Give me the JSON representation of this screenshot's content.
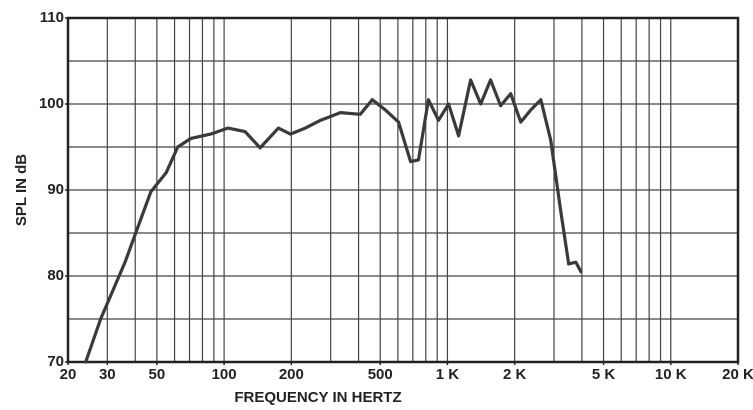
{
  "chart_data": {
    "type": "line",
    "xlabel": "FREQUENCY IN HERTZ",
    "ylabel": "SPL IN dB",
    "x": [
      24,
      28,
      36,
      47,
      55,
      62,
      71,
      87,
      104,
      124,
      145,
      175,
      198,
      231,
      270,
      332,
      407,
      461,
      528,
      604,
      684,
      742,
      822,
      912,
      1012,
      1122,
      1270,
      1409,
      1560,
      1730,
      1920,
      2130,
      2360,
      2620,
      2900,
      3210,
      3490,
      3760,
      3960
    ],
    "series": [
      {
        "color": "#3a3a3a",
        "values": [
          70,
          75,
          81.6,
          89.8,
          92,
          95,
          96,
          96.5,
          97.2,
          96.8,
          94.9,
          97.2,
          96.5,
          97.2,
          98.1,
          99,
          98.8,
          100.5,
          99.3,
          97.9,
          93.3,
          93.5,
          100.5,
          98.1,
          100,
          96.3,
          102.8,
          100,
          102.8,
          99.8,
          101.2,
          97.9,
          99.3,
          100.5,
          95.8,
          87.7,
          81.4,
          81.6,
          80.5
        ]
      }
    ],
    "xscale": "log",
    "xlim": [
      20,
      20000
    ],
    "xticks": [
      20,
      30,
      50,
      100,
      200,
      500,
      {
        "value": 1000,
        "label": "1 K"
      },
      {
        "value": 2000,
        "label": "2 K"
      },
      {
        "value": 5000,
        "label": "5 K"
      },
      {
        "value": 10000,
        "label": "10 K"
      },
      {
        "value": 20000,
        "label": "20 K"
      }
    ],
    "xgrid": [
      30,
      40,
      50,
      60,
      70,
      80,
      90,
      100,
      200,
      300,
      400,
      500,
      600,
      700,
      800,
      900,
      1000,
      2000,
      3000,
      4000,
      5000,
      6000,
      7000,
      8000,
      9000,
      10000
    ],
    "ylim": [
      70,
      110
    ],
    "yticks": [
      70,
      80,
      90,
      100,
      110
    ],
    "ygrid": [
      75,
      80,
      85,
      90,
      95,
      100,
      105
    ],
    "grid": true
  }
}
